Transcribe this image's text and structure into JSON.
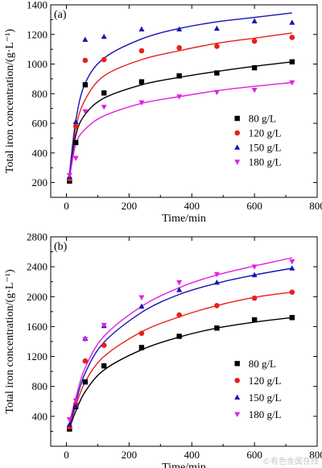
{
  "watermark": "©有色金属在线",
  "chart_data": [
    {
      "type": "scatter",
      "panel_label": "(a)",
      "xlabel": "Time/min",
      "ylabel": "Total iron concentration/(g·L⁻¹)",
      "xlim": [
        -50,
        800
      ],
      "ylim": [
        100,
        1400
      ],
      "xticks": [
        0,
        200,
        400,
        600,
        800
      ],
      "yticks": [
        200,
        400,
        600,
        800,
        1000,
        1200,
        1400
      ],
      "legend_position": "bottom-right",
      "series": [
        {
          "name": "80 g/L",
          "color": "#000000",
          "marker": "square",
          "x": [
            10,
            30,
            60,
            120,
            240,
            360,
            480,
            600,
            720
          ],
          "y": [
            210,
            470,
            860,
            805,
            880,
            920,
            940,
            975,
            1015
          ],
          "fit": [
            [
              10,
              240
            ],
            [
              30,
              520
            ],
            [
              60,
              660
            ],
            [
              120,
              770
            ],
            [
              240,
              860
            ],
            [
              360,
              910
            ],
            [
              480,
              950
            ],
            [
              600,
              985
            ],
            [
              720,
              1015
            ]
          ]
        },
        {
          "name": "120 g/L",
          "color": "#e8201a",
          "marker": "circle",
          "x": [
            10,
            30,
            60,
            120,
            240,
            360,
            480,
            600,
            720
          ],
          "y": [
            225,
            580,
            1025,
            1030,
            1090,
            1110,
            1120,
            1155,
            1180
          ],
          "fit": [
            [
              10,
              250
            ],
            [
              30,
              570
            ],
            [
              60,
              760
            ],
            [
              120,
              920
            ],
            [
              240,
              1030
            ],
            [
              360,
              1090
            ],
            [
              480,
              1140
            ],
            [
              600,
              1175
            ],
            [
              720,
              1210
            ]
          ]
        },
        {
          "name": "150 g/L",
          "color": "#1515b4",
          "marker": "triangle",
          "x": [
            10,
            30,
            60,
            120,
            240,
            360,
            480,
            600,
            720
          ],
          "y": [
            240,
            610,
            1165,
            1185,
            1235,
            1235,
            1240,
            1290,
            1280
          ],
          "fit": [
            [
              10,
              260
            ],
            [
              30,
              620
            ],
            [
              60,
              870
            ],
            [
              120,
              1040
            ],
            [
              240,
              1170
            ],
            [
              360,
              1240
            ],
            [
              480,
              1285
            ],
            [
              600,
              1315
            ],
            [
              720,
              1345
            ]
          ]
        },
        {
          "name": "180 g/L",
          "color": "#e020e0",
          "marker": "triangle-down",
          "x": [
            10,
            30,
            60,
            120,
            240,
            360,
            480,
            600,
            720
          ],
          "y": [
            250,
            365,
            680,
            710,
            740,
            780,
            810,
            825,
            875
          ],
          "fit": [
            [
              10,
              230
            ],
            [
              30,
              460
            ],
            [
              60,
              560
            ],
            [
              120,
              650
            ],
            [
              240,
              735
            ],
            [
              360,
              780
            ],
            [
              480,
              820
            ],
            [
              600,
              850
            ],
            [
              720,
              875
            ]
          ]
        }
      ]
    },
    {
      "type": "scatter",
      "panel_label": "(b)",
      "xlabel": "Time/min",
      "ylabel": "Total iron concentration/(g·L⁻¹)",
      "xlim": [
        -50,
        800
      ],
      "ylim": [
        0,
        2800
      ],
      "xticks": [
        0,
        200,
        400,
        600,
        800
      ],
      "yticks": [
        400,
        800,
        1200,
        1600,
        2000,
        2400,
        2800
      ],
      "legend_position": "bottom-right",
      "series": [
        {
          "name": "80 g/L",
          "color": "#000000",
          "marker": "square",
          "x": [
            10,
            30,
            60,
            120,
            240,
            360,
            480,
            600,
            720
          ],
          "y": [
            230,
            530,
            860,
            1075,
            1320,
            1470,
            1580,
            1690,
            1720
          ],
          "fit": [
            [
              10,
              240
            ],
            [
              30,
              470
            ],
            [
              60,
              730
            ],
            [
              120,
              1020
            ],
            [
              240,
              1290
            ],
            [
              360,
              1460
            ],
            [
              480,
              1580
            ],
            [
              600,
              1660
            ],
            [
              720,
              1720
            ]
          ]
        },
        {
          "name": "120 g/L",
          "color": "#e8201a",
          "marker": "circle",
          "x": [
            10,
            30,
            60,
            120,
            240,
            360,
            480,
            600,
            720
          ],
          "y": [
            260,
            560,
            1140,
            1350,
            1510,
            1755,
            1880,
            1980,
            2060
          ],
          "fit": [
            [
              10,
              260
            ],
            [
              30,
              540
            ],
            [
              60,
              860
            ],
            [
              120,
              1200
            ],
            [
              240,
              1530
            ],
            [
              360,
              1730
            ],
            [
              480,
              1880
            ],
            [
              600,
              1990
            ],
            [
              720,
              2060
            ]
          ]
        },
        {
          "name": "150 g/L",
          "color": "#1515b4",
          "marker": "triangle",
          "x": [
            10,
            30,
            60,
            120,
            240,
            360,
            480,
            600,
            720
          ],
          "y": [
            290,
            540,
            1440,
            1610,
            1870,
            2090,
            2190,
            2290,
            2380
          ],
          "fit": [
            [
              10,
              270
            ],
            [
              30,
              590
            ],
            [
              60,
              980
            ],
            [
              120,
              1390
            ],
            [
              240,
              1790
            ],
            [
              360,
              2030
            ],
            [
              480,
              2180
            ],
            [
              600,
              2290
            ],
            [
              720,
              2380
            ]
          ]
        },
        {
          "name": "180 g/L",
          "color": "#e020e0",
          "marker": "triangle-down",
          "x": [
            10,
            30,
            60,
            120,
            240,
            360,
            480,
            600,
            720
          ],
          "y": [
            360,
            610,
            1430,
            1620,
            1990,
            2190,
            2300,
            2400,
            2470
          ],
          "fit": [
            [
              10,
              320
            ],
            [
              30,
              650
            ],
            [
              60,
              1050
            ],
            [
              120,
              1470
            ],
            [
              240,
              1870
            ],
            [
              360,
              2120
            ],
            [
              480,
              2290
            ],
            [
              600,
              2410
            ],
            [
              720,
              2520
            ]
          ]
        }
      ]
    }
  ]
}
